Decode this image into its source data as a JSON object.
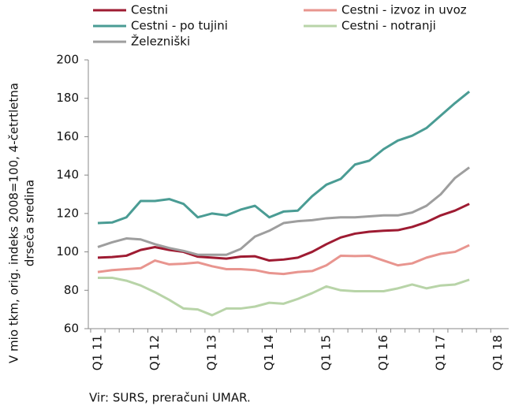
{
  "chart_data": {
    "type": "line",
    "ylabel": [
      "V mio tkm, orig. indeks 2008=100, 4-četrtletna",
      "drseča sredina"
    ],
    "source": "Vir: SURS, preračuni UMAR.",
    "categories": [
      "Q1 11",
      null,
      null,
      null,
      "Q1 12",
      null,
      null,
      null,
      "Q1 13",
      null,
      null,
      null,
      "Q1 14",
      null,
      null,
      null,
      "Q1 15",
      null,
      null,
      null,
      "Q1 16",
      null,
      null,
      null,
      "Q1 17",
      null,
      null,
      null,
      "Q1 18"
    ],
    "ylim": [
      60,
      200
    ],
    "yticks": [
      60,
      80,
      100,
      120,
      140,
      160,
      180,
      200
    ],
    "grid": false,
    "series": [
      {
        "name": "Cestni",
        "color": "#9e1b32",
        "values": [
          97,
          97.3,
          98,
          101,
          102.5,
          101,
          100,
          97.5,
          97,
          96.5,
          97.5,
          97.7,
          95.5,
          96,
          97,
          100,
          104,
          107.5,
          109.5,
          110.5,
          111,
          111.3,
          113,
          115.5,
          119,
          121.5,
          125,
          null,
          null
        ]
      },
      {
        "name": "Cestni - izvoz in uvoz",
        "color": "#e8958f",
        "values": [
          89.5,
          90.5,
          91,
          91.5,
          95.5,
          93.5,
          93.8,
          94.5,
          92.5,
          91,
          91,
          90.5,
          89,
          88.5,
          89.5,
          90,
          93,
          98,
          97.8,
          98,
          95.5,
          93,
          94,
          97,
          99,
          100,
          103.5,
          null,
          null
        ]
      },
      {
        "name": "Cestni - po tujini",
        "color": "#4a9c94",
        "values": [
          115,
          115.3,
          118,
          126.5,
          126.5,
          127.5,
          125,
          118,
          120,
          119,
          122,
          124,
          118,
          121,
          121.5,
          129,
          135,
          138,
          145.5,
          147.5,
          153.5,
          158,
          160.5,
          164.5,
          171,
          177.5,
          183.5,
          null,
          null
        ]
      },
      {
        "name": "Cestni - notranji",
        "color": "#b8d4a8",
        "values": [
          86.5,
          86.5,
          85,
          82.5,
          79,
          75,
          70.5,
          70,
          67,
          70.5,
          70.5,
          71.5,
          73.5,
          73,
          75.5,
          78.5,
          82,
          80,
          79.5,
          79.5,
          79.5,
          81,
          83,
          81,
          82.5,
          83,
          85.5,
          null,
          null
        ]
      },
      {
        "name": "Železniški",
        "color": "#9e9e9e",
        "values": [
          102.5,
          105,
          107,
          106.5,
          104,
          102,
          100.5,
          98.5,
          98.5,
          98.5,
          101.5,
          108,
          111,
          115,
          116,
          116.5,
          117.5,
          118,
          118,
          118.5,
          119,
          119,
          120.5,
          124,
          130,
          138.5,
          144,
          null,
          null
        ]
      }
    ]
  }
}
